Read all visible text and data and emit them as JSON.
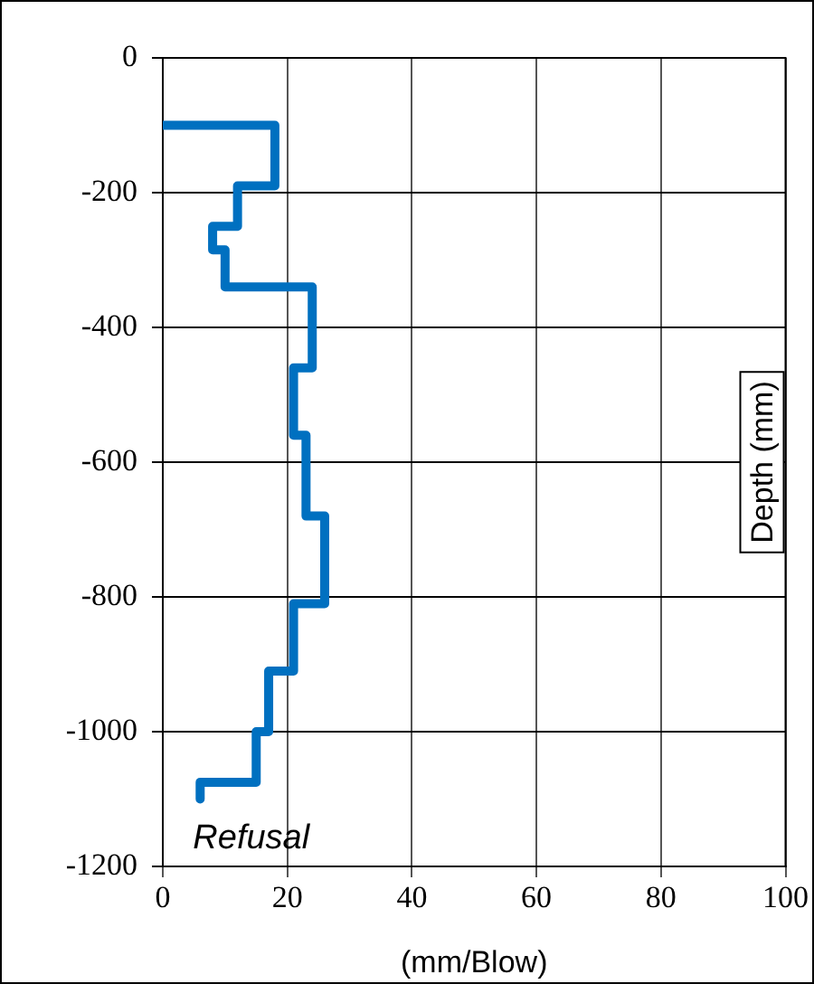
{
  "chart_data": {
    "type": "line",
    "xlabel": "(mm/Blow)",
    "ylabel": "Depth (mm)",
    "x": [
      0,
      18,
      18,
      12,
      12,
      8,
      8,
      10,
      10,
      24,
      24,
      21,
      21,
      23,
      23,
      26,
      26,
      21,
      21,
      17,
      17,
      15,
      15,
      6,
      6
    ],
    "series": [
      {
        "color": "#0070c0",
        "values": [
          -100,
          -100,
          -190,
          -190,
          -250,
          -250,
          -285,
          -285,
          -340,
          -340,
          -460,
          -460,
          -560,
          -560,
          -680,
          -680,
          -810,
          -810,
          -910,
          -910,
          -1000,
          -1000,
          -1075,
          -1075,
          -1100
        ]
      }
    ],
    "xlim": [
      0,
      100
    ],
    "xticks": [
      0,
      20,
      40,
      60,
      80,
      100
    ],
    "ylim": [
      -1200,
      0
    ],
    "yticks": [
      0,
      -200,
      -400,
      -600,
      -800,
      -1000,
      -1200
    ],
    "grid": true,
    "legend": false,
    "marker": "none",
    "line_style": "solid",
    "annotations": [
      {
        "text": "Refusal",
        "x": 6,
        "y": -1100
      }
    ]
  }
}
